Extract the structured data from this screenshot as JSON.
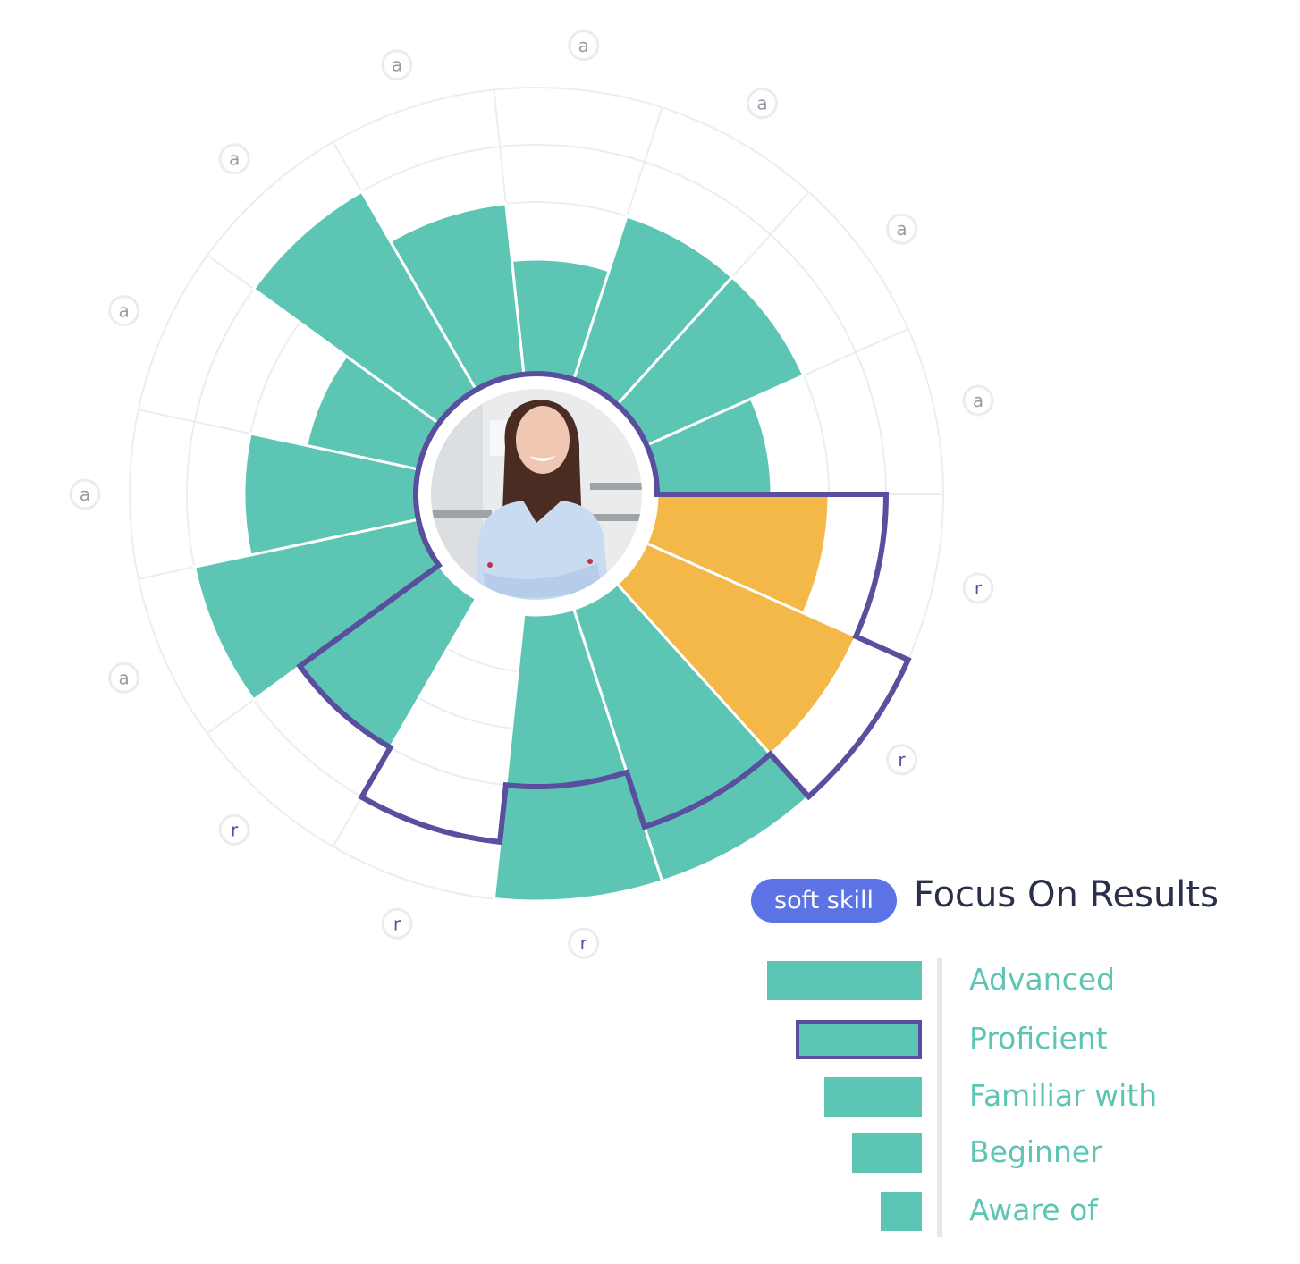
{
  "badge": "soft skill",
  "title": "Focus On Results",
  "legend": [
    {
      "label": "Advanced",
      "level": 5
    },
    {
      "label": "Proficient",
      "level": 4,
      "target_marker": true
    },
    {
      "label": "Familiar with",
      "level": 3
    },
    {
      "label": "Beginner",
      "level": 2
    },
    {
      "label": "Aware of",
      "level": 1
    }
  ],
  "colors": {
    "fill": "#5dc5b4",
    "highlight": "#f3b847",
    "target_outline": "#5a4e9e",
    "badge": "#5b73e4",
    "grid": "#ececf2",
    "label_a": "#9a9aa6",
    "label_r": "#5a4e9e"
  },
  "photo": "profile-photo-woman",
  "chart_data": {
    "type": "polar-bar",
    "levels": [
      "Aware of",
      "Beginner",
      "Familiar with",
      "Proficient",
      "Advanced"
    ],
    "max_level": 5,
    "grid": true,
    "segments": [
      {
        "label": "a",
        "level": 2
      },
      {
        "label": "a",
        "level": 3
      },
      {
        "label": "a",
        "level": 3
      },
      {
        "label": "a",
        "level": 2
      },
      {
        "label": "r",
        "level": 3,
        "target": 4,
        "highlighted": true
      },
      {
        "label": "r",
        "level": 4,
        "target": 5,
        "highlighted": true
      },
      {
        "label": "",
        "level": 5,
        "target": 4
      },
      {
        "label": "r",
        "level": 5,
        "target": 3
      },
      {
        "label": "r",
        "level": 0,
        "target": 4
      },
      {
        "label": "r",
        "level": 3,
        "target": 3
      },
      {
        "label": "a",
        "level": 4
      },
      {
        "label": "a",
        "level": 3
      },
      {
        "label": "a",
        "level": 2
      },
      {
        "label": "a",
        "level": 4
      },
      {
        "label": "a",
        "level": 3
      }
    ]
  }
}
